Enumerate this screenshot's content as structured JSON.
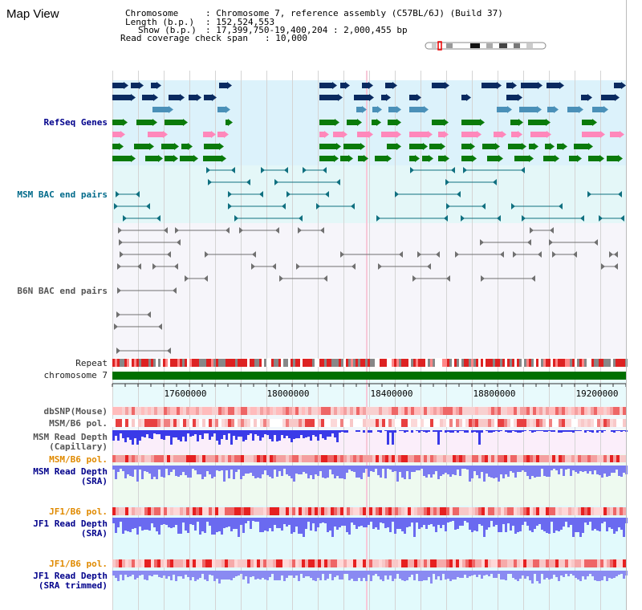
{
  "page_title": "Map View",
  "header": {
    "chromosome_key": "Chromosome",
    "chromosome_value": ": Chromosome 7, reference assembly (C57BL/6J) (Build 37)",
    "length_key": "Length (b.p.)",
    "length_value": ": 152,524,553",
    "show_key": "Show (b.p.)",
    "show_value": ": 17,399,750-19,400,204 : 2,000,455 bp",
    "coverage_key": "Read coverage check span",
    "coverage_value": ": 10,000"
  },
  "tracks": {
    "refseq": "RefSeq Genes",
    "msm_bac": "MSM BAC end pairs",
    "b6n_bac": "B6N BAC end pairs",
    "repeat": "Repeat",
    "chromosome": "chromosome 7",
    "dbsnp": "dbSNP(Mouse)",
    "msm_pol": "MSM/B6 pol.",
    "msm_depth_cap_1": "MSM Read Depth",
    "msm_depth_cap_2": "(Capillary)",
    "msm_pol_sra": "MSM/B6 pol.",
    "msm_depth_sra_1": "MSM Read Depth",
    "msm_depth_sra_2": "(SRA)",
    "jf1_pol": "JF1/B6 pol.",
    "jf1_depth_1": "JF1 Read Depth",
    "jf1_depth_2": "(SRA)",
    "jf1_pol_trim": "JF1/B6 pol.",
    "jf1_depth_trim_1": "JF1 Read Depth",
    "jf1_depth_trim_2": "(SRA trimmed)"
  },
  "axis": {
    "ticks": [
      "17600000",
      "18000000",
      "18400000",
      "18800000",
      "19200000"
    ]
  },
  "colors": {
    "label_blue": "#00008b",
    "label_teal": "#006a8a",
    "label_orange": "#e08a00",
    "label_gray": "#222222",
    "gene_navy": "#0a2a60",
    "gene_steel": "#4a90b8",
    "gene_green": "#0a7a0a",
    "gene_pink": "#ff88bb",
    "bac_teal": "#107080",
    "chromosome_green": "#007000",
    "depth_blue": "#4444ee",
    "pol_red": "#ee2222"
  }
}
